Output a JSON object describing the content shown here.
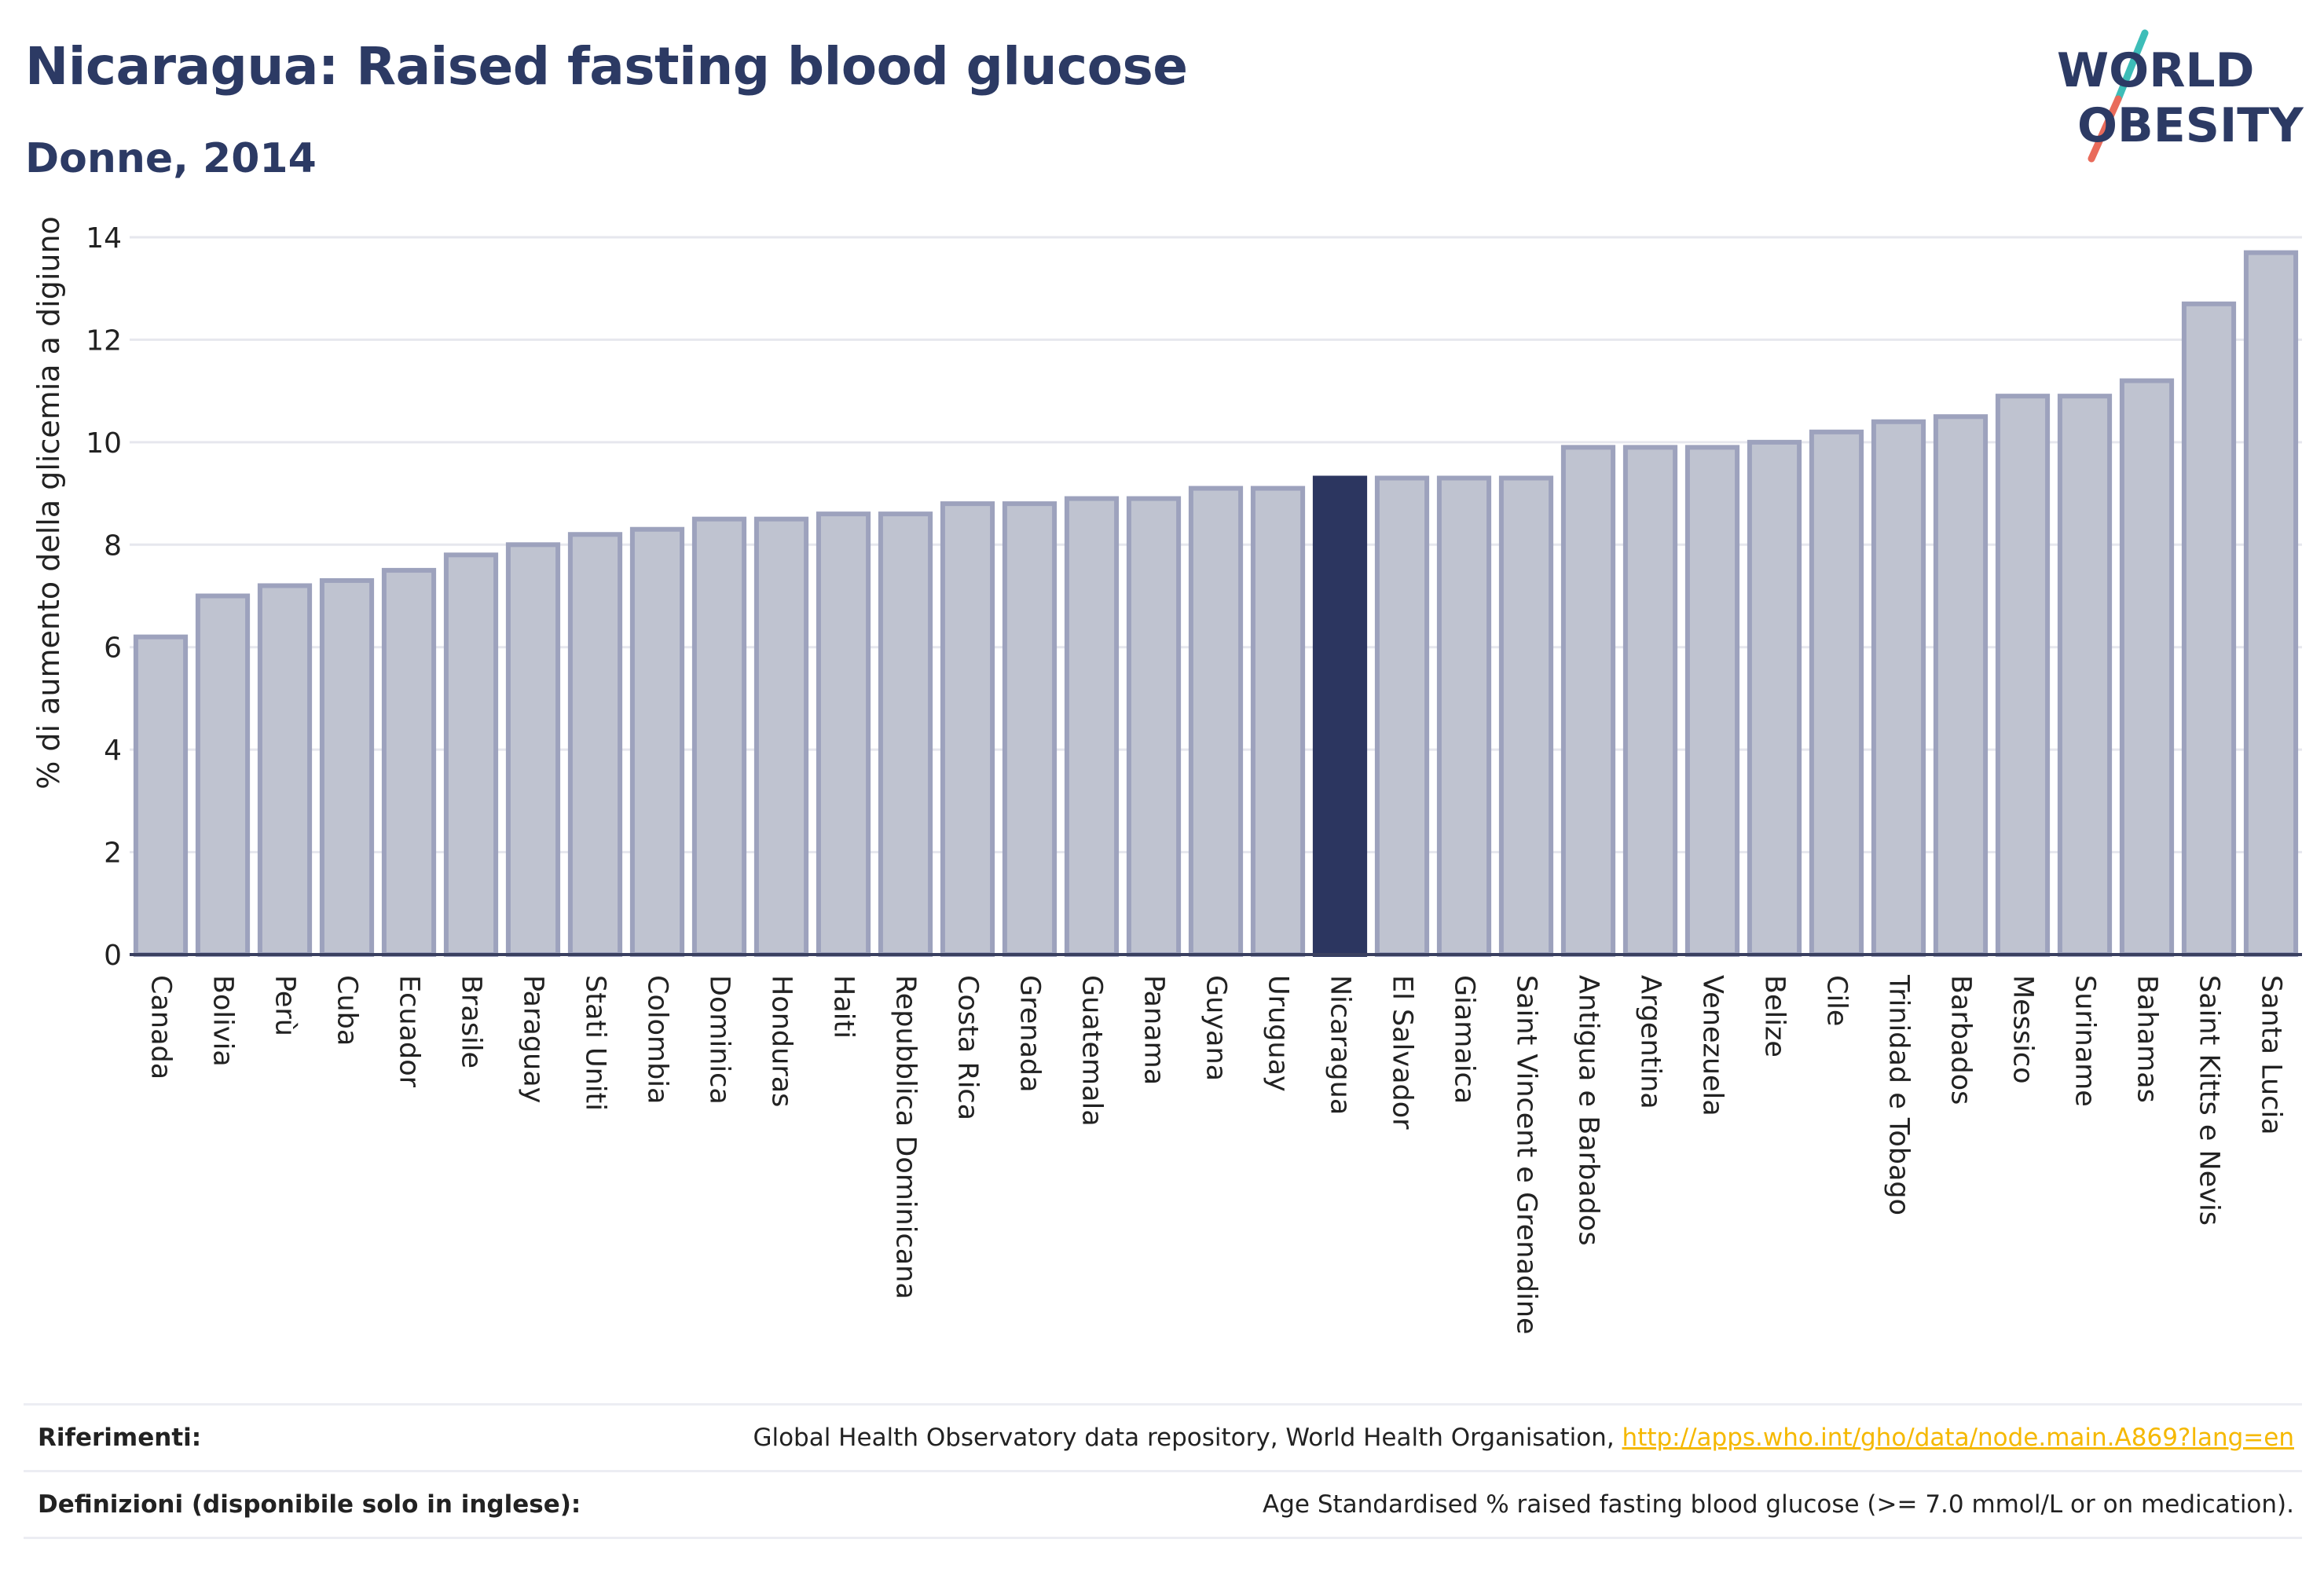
{
  "header": {
    "title": "Nicaragua: Raised fasting blood glucose",
    "subtitle": "Donne, 2014"
  },
  "logo": {
    "text_line1": "WORLD",
    "text_line2": "OBESITY",
    "colors": {
      "text": "#2c3a64",
      "slash_top": "#3dbdb8",
      "slash_bottom": "#e96b5b"
    }
  },
  "chart_data": {
    "type": "bar",
    "title": "",
    "xlabel": "",
    "ylabel": "% di aumento della glicemia a digiuno",
    "ylim": [
      0,
      14
    ],
    "yticks": [
      0,
      2,
      4,
      6,
      8,
      10,
      12,
      14
    ],
    "grid": true,
    "highlight": "Nicaragua",
    "categories": [
      "Canada",
      "Bolivia",
      "Perù",
      "Cuba",
      "Ecuador",
      "Brasile",
      "Paraguay",
      "Stati Uniti",
      "Colombia",
      "Dominica",
      "Honduras",
      "Haiti",
      "Repubblica Dominicana",
      "Costa Rica",
      "Grenada",
      "Guatemala",
      "Panama",
      "Guyana",
      "Uruguay",
      "Nicaragua",
      "El Salvador",
      "Giamaica",
      "Saint Vincent e Grenadine",
      "Antigua e Barbados",
      "Argentina",
      "Venezuela",
      "Belize",
      "Cile",
      "Trinidad e Tobago",
      "Barbados",
      "Messico",
      "Suriname",
      "Bahamas",
      "Saint Kitts e Nevis",
      "Santa Lucia"
    ],
    "values": [
      6.2,
      7.0,
      7.2,
      7.3,
      7.5,
      7.8,
      8.0,
      8.2,
      8.3,
      8.5,
      8.5,
      8.6,
      8.6,
      8.8,
      8.8,
      8.9,
      8.9,
      9.1,
      9.1,
      9.3,
      9.3,
      9.3,
      9.3,
      9.9,
      9.9,
      9.9,
      10.0,
      10.2,
      10.4,
      10.5,
      10.9,
      10.9,
      11.2,
      12.7,
      13.7
    ],
    "colors": {
      "bar_fill": "#bfc3d0",
      "bar_stroke": "#9da2bd",
      "highlight_fill": "#2c3660",
      "grid": "#e6e7ee",
      "axis": "#3a4060",
      "text": "#222222"
    }
  },
  "footer": {
    "references_label": "Riferimenti:",
    "references_text": "Global Health Observatory data repository, World Health Organisation, ",
    "references_link": "http://apps.who.int/gho/data/node.main.A869?lang=en",
    "definitions_label": "Definizioni (disponibile solo in inglese):",
    "definitions_text": "Age Standardised % raised fasting blood glucose (>= 7.0 mmol/L or on medication)."
  }
}
